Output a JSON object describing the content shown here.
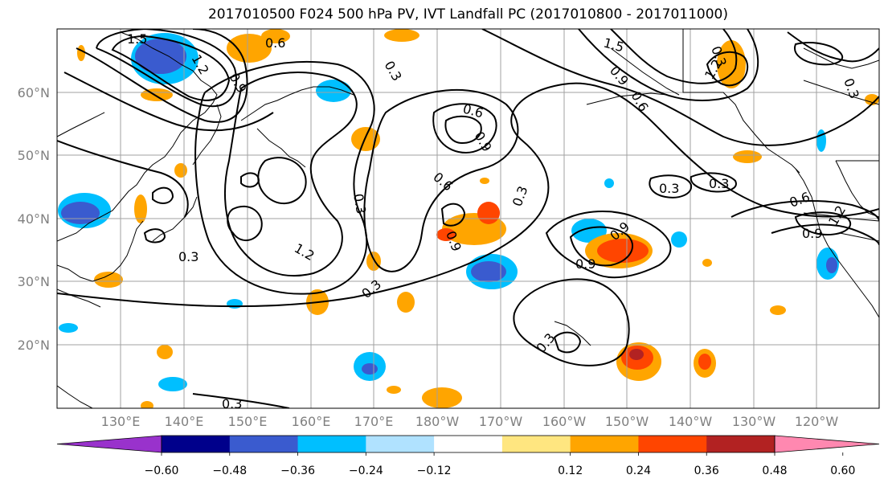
{
  "title": "2017010500 F024 500 hPa PV, IVT Landfall PC (2017010800 - 2017011000)",
  "lat_labels": [
    "60°N",
    "50°N",
    "40°N",
    "30°N",
    "20°N"
  ],
  "lon_labels": [
    "130°E",
    "140°E",
    "150°E",
    "160°E",
    "170°E",
    "180°W",
    "170°W",
    "160°W",
    "150°W",
    "140°W",
    "130°W",
    "120°W"
  ],
  "contour_labels": [
    "1.5",
    "0.6",
    "1.2",
    "0.9",
    "0.3",
    "1.5",
    "0.9",
    "0.6",
    "1.2",
    "0.6",
    "0.9",
    "0.3",
    "0.3",
    "0.6",
    "0.3",
    "0.3",
    "0.9",
    "1.2",
    "0.3",
    "0.9",
    "0.9",
    "0.3",
    "0.3",
    "0.3",
    "0.6",
    "0.9",
    "1.2",
    "0.3",
    "0.3"
  ],
  "colorbar": {
    "tick_labels": [
      "−0.60",
      "−0.48",
      "−0.36",
      "−0.24",
      "−0.12",
      "0.12",
      "0.24",
      "0.36",
      "0.48",
      "0.60"
    ],
    "colors": [
      "#9932cc",
      "#00008b",
      "#3a5bcf",
      "#00bfff",
      "#b0e2ff",
      "#ffffff",
      "#ffe680",
      "#ffa500",
      "#ff4500",
      "#b22222",
      "#ff88b0"
    ]
  },
  "colors": {
    "grid": "#a0a0a0",
    "coast": "#000000",
    "contour": "#000000",
    "tick_text": "#808080"
  }
}
